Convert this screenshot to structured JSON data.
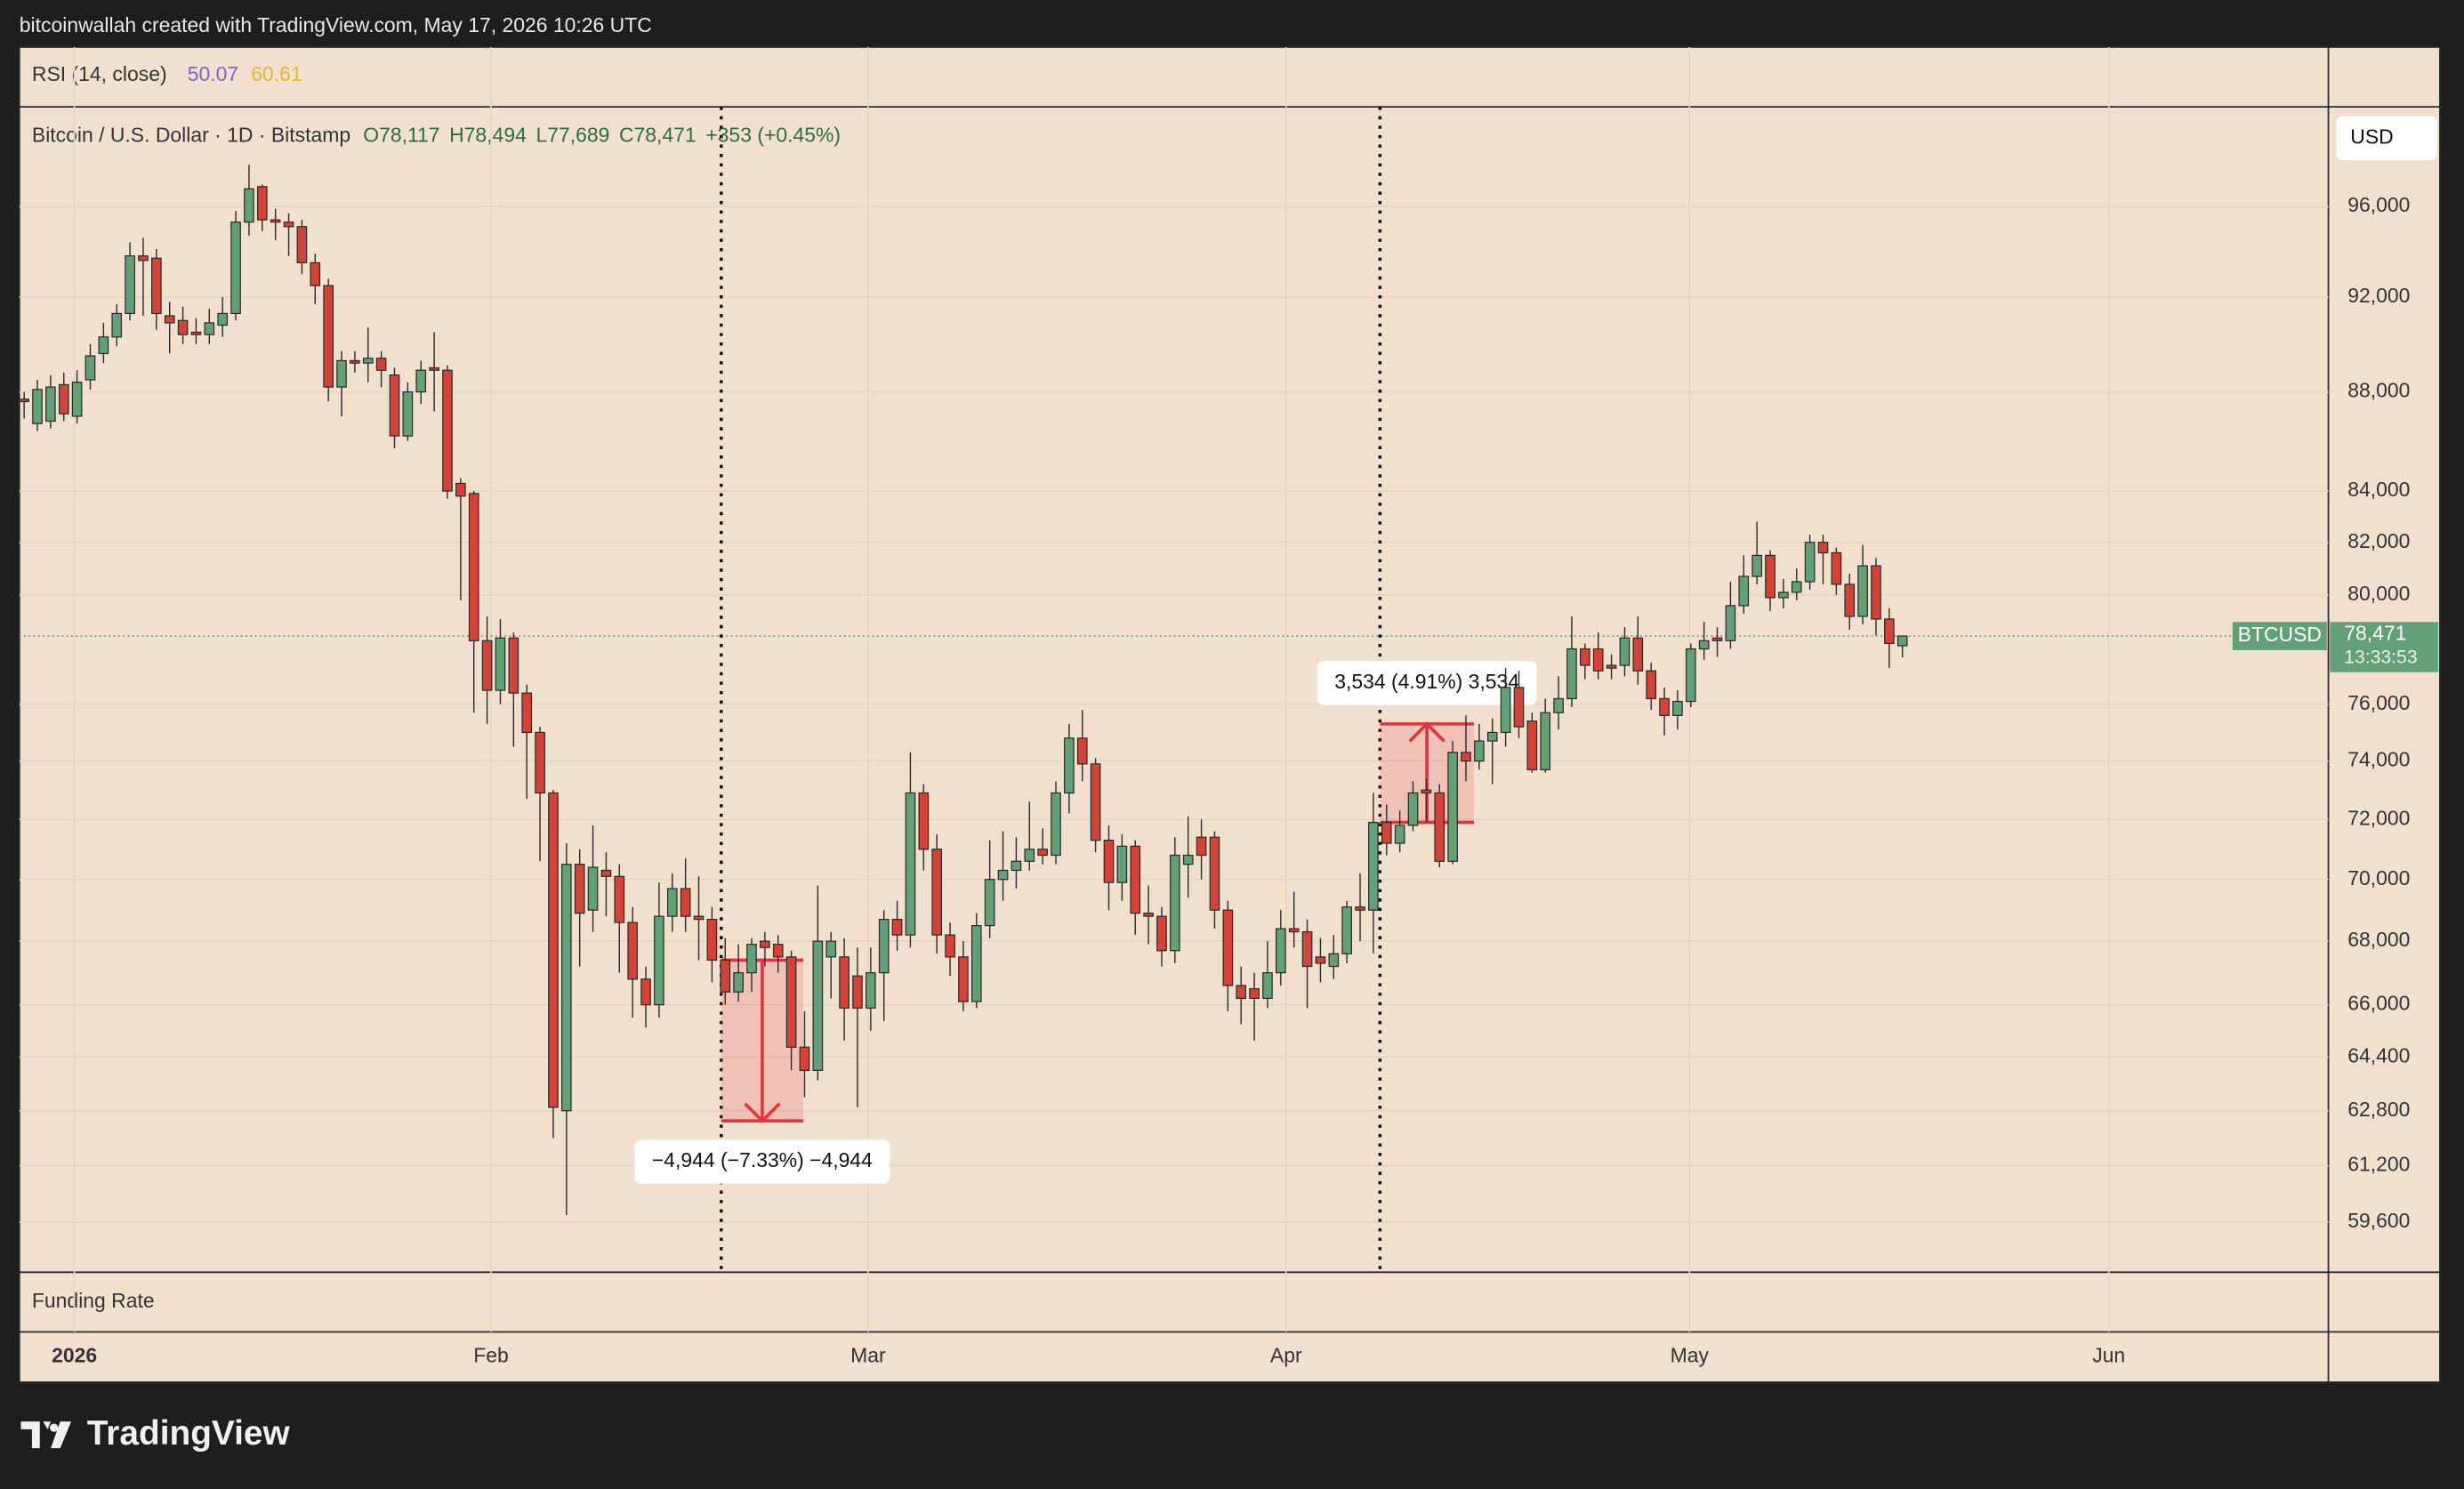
{
  "chart_data": {
    "type": "candlestick",
    "header": "bitcoinwallah created with TradingView.com, May 17, 2026 10:26 UTC",
    "rsi": {
      "label": "RSI (14, close)",
      "values": [
        50.07,
        60.61
      ],
      "colors": [
        "#8e5ec7",
        "#e3b72a"
      ]
    },
    "title": "Bitcoin / U.S. Dollar · 1D · Bitstamp",
    "legend_ohlc": [
      "O78,117",
      "H78,494",
      "L77,689",
      "C78,471",
      "+353 (+0.45%)"
    ],
    "currency": "USD",
    "lower_pane": "Funding Rate",
    "brand": "TradingView",
    "up_color": "#63a078",
    "down_color": "#d2433a",
    "log_scale": true,
    "grid": true,
    "open": [
      87700,
      86700,
      86800,
      88300,
      87000,
      88500,
      89600,
      90300,
      91300,
      93800,
      93700,
      91200,
      91000,
      90500,
      90400,
      90800,
      91300,
      95300,
      96900,
      95400,
      95300,
      95100,
      93500,
      92500,
      88200,
      89300,
      89200,
      89400,
      88700,
      86200,
      88000,
      89000,
      88900,
      84300,
      83900,
      78300,
      76500,
      78400,
      76400,
      75000,
      72900,
      62800,
      70500,
      69000,
      70300,
      70100,
      68600,
      66800,
      66000,
      68800,
      69700,
      68800,
      68700,
      67400,
      66400,
      67000,
      68000,
      67900,
      67500,
      64700,
      64000,
      67500,
      67500,
      66900,
      65900,
      67000,
      68700,
      68200,
      72900,
      71000,
      68200,
      67500,
      66100,
      68500,
      70000,
      70300,
      70600,
      71000,
      70800,
      72900,
      74800,
      73900,
      71300,
      69900,
      71100,
      68900,
      68800,
      67700,
      70500,
      71400,
      71400,
      69000,
      66600,
      66500,
      66200,
      67000,
      68400,
      68300,
      67500,
      67200,
      67600,
      69100,
      69000,
      71900,
      71200,
      71800,
      73000,
      72900,
      70600,
      74300,
      74000,
      74700,
      75000,
      76600,
      75400,
      73700,
      75700,
      76200,
      78000,
      78000,
      77400,
      77400,
      78400,
      77200,
      76200,
      75600,
      76100,
      78000,
      78400,
      78300,
      79600,
      80700,
      81500,
      79900,
      80100,
      80500,
      82000,
      81600,
      80400,
      79200,
      81100,
      79100,
      78117
    ],
    "high": [
      88000,
      88500,
      88700,
      88800,
      88900,
      90000,
      90900,
      91700,
      94400,
      94600,
      94100,
      91800,
      91600,
      91100,
      91500,
      92000,
      95800,
      97900,
      97000,
      95900,
      95700,
      95400,
      93900,
      92800,
      89700,
      89700,
      90700,
      89700,
      89000,
      88400,
      89300,
      90500,
      89100,
      84500,
      84000,
      79200,
      79100,
      78600,
      76700,
      75200,
      73000,
      71200,
      71000,
      71800,
      70900,
      70500,
      69100,
      67200,
      69900,
      70200,
      70700,
      70100,
      69100,
      68100,
      67900,
      68100,
      68300,
      68200,
      67700,
      65800,
      69800,
      68300,
      68100,
      67800,
      67800,
      69000,
      69300,
      74300,
      73200,
      71500,
      68600,
      68000,
      68900,
      71300,
      71600,
      71400,
      72600,
      71700,
      73300,
      75300,
      75800,
      74100,
      71800,
      71500,
      71300,
      69800,
      69100,
      71400,
      72100,
      72000,
      71600,
      69300,
      67200,
      67000,
      68000,
      69000,
      69600,
      68700,
      68100,
      68200,
      69300,
      70200,
      72900,
      72500,
      72300,
      73300,
      73400,
      73200,
      74700,
      75600,
      75300,
      75500,
      77300,
      77200,
      75700,
      76200,
      77000,
      79200,
      78200,
      78600,
      77800,
      78800,
      79200,
      77500,
      76600,
      76500,
      78200,
      79000,
      78800,
      80500,
      81500,
      82800,
      81700,
      80600,
      81000,
      82300,
      82300,
      81800,
      80800,
      81900,
      81400,
      79500,
      78494
    ],
    "low": [
      86900,
      86400,
      86500,
      86800,
      86700,
      88100,
      89200,
      89900,
      91000,
      91200,
      90600,
      89600,
      90000,
      90000,
      90000,
      90300,
      91000,
      94700,
      94900,
      94500,
      93800,
      93000,
      91700,
      87600,
      87000,
      88800,
      88400,
      88200,
      85700,
      86000,
      87500,
      87200,
      83700,
      79800,
      75700,
      75300,
      76000,
      74500,
      72700,
      70600,
      62000,
      59800,
      67200,
      68300,
      68800,
      67000,
      65600,
      65300,
      65600,
      68300,
      68300,
      67400,
      66700,
      66000,
      66100,
      66400,
      67200,
      67000,
      64000,
      63200,
      63700,
      66200,
      64900,
      62900,
      65200,
      65500,
      67700,
      67800,
      70300,
      67600,
      66900,
      65800,
      65900,
      68100,
      69300,
      69700,
      70300,
      70500,
      70500,
      72200,
      73300,
      70900,
      69000,
      69300,
      68200,
      67900,
      67200,
      67300,
      69400,
      70000,
      68400,
      65800,
      65400,
      64900,
      65900,
      66600,
      67800,
      65900,
      66700,
      66800,
      67300,
      68000,
      67600,
      70800,
      70900,
      71600,
      71900,
      70400,
      70500,
      73300,
      73700,
      73200,
      74500,
      74800,
      73600,
      73600,
      75100,
      75900,
      76900,
      76900,
      76900,
      77000,
      76700,
      75800,
      74900,
      75100,
      75900,
      77600,
      77700,
      78000,
      79300,
      80400,
      79400,
      79500,
      79800,
      80200,
      80400,
      80000,
      78700,
      78900,
      78500,
      77300,
      77689
    ],
    "close": [
      87600,
      88100,
      88200,
      87100,
      88400,
      89500,
      90300,
      91300,
      93800,
      93600,
      91300,
      90900,
      90400,
      90400,
      90900,
      91300,
      95300,
      96800,
      95400,
      95300,
      95100,
      93500,
      92500,
      88200,
      89300,
      89200,
      89400,
      88900,
      86200,
      88000,
      88900,
      88900,
      84000,
      83800,
      78300,
      76500,
      78400,
      76400,
      75000,
      72900,
      62900,
      70500,
      68900,
      70400,
      70100,
      68600,
      66800,
      66000,
      68800,
      69700,
      68800,
      68700,
      67400,
      66400,
      67000,
      67900,
      67800,
      67500,
      64700,
      64000,
      68000,
      68000,
      65900,
      65900,
      67000,
      68700,
      68200,
      72900,
      71000,
      68200,
      67500,
      66100,
      68500,
      70000,
      70300,
      70600,
      71000,
      70800,
      72900,
      74800,
      73900,
      71300,
      69900,
      71100,
      68900,
      68800,
      67700,
      70800,
      70800,
      70800,
      69000,
      66600,
      66200,
      66200,
      67000,
      68400,
      68300,
      67200,
      67300,
      67600,
      69100,
      69000,
      71900,
      71200,
      71800,
      72900,
      72900,
      70600,
      74300,
      74000,
      74700,
      75000,
      76600,
      75200,
      73700,
      75700,
      76200,
      78000,
      77400,
      77200,
      77300,
      78400,
      77200,
      76200,
      75600,
      76100,
      78000,
      78300,
      78300,
      79600,
      80700,
      81500,
      79900,
      80100,
      80500,
      82000,
      81600,
      80400,
      79200,
      81100,
      79100,
      78200,
      78471
    ],
    "xlim": [
      -0.36,
      174.2
    ],
    "xticks": [
      {
        "value": 3.8,
        "label": "2026"
      },
      {
        "value": 35.3,
        "label": "Feb"
      },
      {
        "value": 63.8,
        "label": "Mar"
      },
      {
        "value": 95.4,
        "label": "Apr"
      },
      {
        "value": 125.9,
        "label": "May"
      },
      {
        "value": 157.6,
        "label": "Jun"
      }
    ],
    "ylim": [
      58300,
      100600
    ],
    "yticks": [
      {
        "value": 96000,
        "label": "96,000"
      },
      {
        "value": 92000,
        "label": "92,000"
      },
      {
        "value": 88000,
        "label": "88,000"
      },
      {
        "value": 84000,
        "label": "84,000"
      },
      {
        "value": 82000,
        "label": "82,000"
      },
      {
        "value": 80000,
        "label": "80,000"
      },
      {
        "value": 76000,
        "label": "76,000"
      },
      {
        "value": 74000,
        "label": "74,000"
      },
      {
        "value": 72000,
        "label": "72,000"
      },
      {
        "value": 70000,
        "label": "70,000"
      },
      {
        "value": 68000,
        "label": "68,000"
      },
      {
        "value": 66000,
        "label": "66,000"
      },
      {
        "value": 64400,
        "label": "64,400"
      },
      {
        "value": 62800,
        "label": "62,800"
      },
      {
        "value": 61200,
        "label": "61,200"
      },
      {
        "value": 59600,
        "label": "59,600"
      }
    ],
    "vlines": [
      52.7,
      102.5
    ],
    "measures": [
      {
        "x0": 52.7,
        "x1": 58.9,
        "from": 67400,
        "to": 62500,
        "label": "−4,944 (−7.33%) −4,944"
      },
      {
        "x0": 102.5,
        "x1": 109.6,
        "from": 71900,
        "to": 75300,
        "label": "3,534 (4.91%) 3,534"
      }
    ],
    "last": {
      "value": 78471,
      "symbol": "BTCUSD",
      "label": "78,471",
      "countdown": "13:33:53"
    }
  }
}
